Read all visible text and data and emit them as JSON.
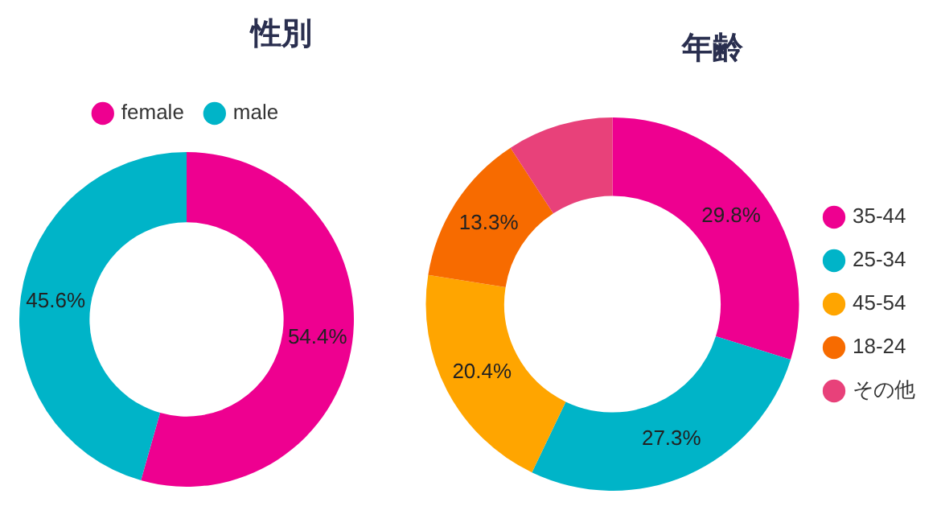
{
  "chart_data": [
    {
      "type": "donut",
      "title": "性別",
      "categories": [
        "female",
        "male"
      ],
      "values": [
        54.4,
        45.6
      ],
      "colors": [
        "#ee0090",
        "#00b4c8"
      ],
      "value_labels": [
        "54.4%",
        "45.6%"
      ],
      "legend": "top"
    },
    {
      "type": "donut",
      "title": "年齢",
      "categories": [
        "35-44",
        "25-34",
        "45-54",
        "18-24",
        "その他"
      ],
      "values": [
        29.8,
        27.3,
        20.4,
        13.3,
        9.2
      ],
      "colors": [
        "#ee0090",
        "#00b4c8",
        "#ffa500",
        "#f76b00",
        "#e8417a"
      ],
      "value_labels": [
        "29.8%",
        "27.3%",
        "20.4%",
        "13.3%",
        null
      ],
      "legend": "right"
    }
  ]
}
